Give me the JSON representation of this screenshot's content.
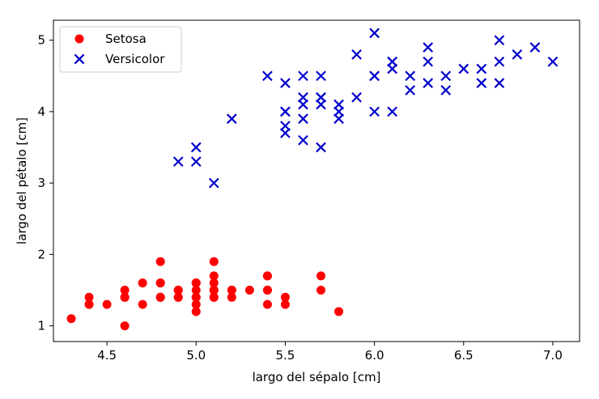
{
  "chart_data": {
    "type": "scatter",
    "xlabel": "largo del sépalo [cm]",
    "ylabel": "largo del pétalo [cm]",
    "xlim": [
      4.2,
      7.15
    ],
    "ylim": [
      0.78,
      5.28
    ],
    "xticks": [
      4.5,
      5.0,
      5.5,
      6.0,
      6.5,
      7.0
    ],
    "xtick_labels": [
      "4.5",
      "5.0",
      "5.5",
      "6.0",
      "6.5",
      "7.0"
    ],
    "yticks": [
      1,
      2,
      3,
      4,
      5
    ],
    "ytick_labels": [
      "1",
      "2",
      "3",
      "4",
      "5"
    ],
    "grid": false,
    "legend_position": "top-left",
    "series": [
      {
        "name": "Setosa",
        "marker": "circle",
        "color": "#ff0000",
        "points": [
          [
            5.1,
            1.4
          ],
          [
            4.9,
            1.4
          ],
          [
            4.7,
            1.3
          ],
          [
            4.6,
            1.5
          ],
          [
            5.0,
            1.4
          ],
          [
            5.4,
            1.7
          ],
          [
            4.6,
            1.4
          ],
          [
            5.0,
            1.5
          ],
          [
            4.4,
            1.4
          ],
          [
            4.9,
            1.5
          ],
          [
            5.4,
            1.5
          ],
          [
            4.8,
            1.6
          ],
          [
            4.8,
            1.4
          ],
          [
            4.3,
            1.1
          ],
          [
            5.8,
            1.2
          ],
          [
            5.7,
            1.5
          ],
          [
            5.4,
            1.3
          ],
          [
            5.1,
            1.4
          ],
          [
            5.7,
            1.7
          ],
          [
            5.1,
            1.5
          ],
          [
            5.4,
            1.7
          ],
          [
            5.1,
            1.5
          ],
          [
            4.6,
            1.0
          ],
          [
            5.1,
            1.7
          ],
          [
            4.8,
            1.9
          ],
          [
            5.0,
            1.6
          ],
          [
            5.0,
            1.6
          ],
          [
            5.2,
            1.5
          ],
          [
            5.2,
            1.4
          ],
          [
            4.7,
            1.6
          ],
          [
            4.8,
            1.6
          ],
          [
            5.4,
            1.5
          ],
          [
            5.2,
            1.5
          ],
          [
            5.5,
            1.4
          ],
          [
            4.9,
            1.5
          ],
          [
            5.0,
            1.2
          ],
          [
            5.5,
            1.3
          ],
          [
            4.9,
            1.4
          ],
          [
            4.4,
            1.3
          ],
          [
            5.1,
            1.5
          ],
          [
            5.0,
            1.3
          ],
          [
            4.5,
            1.3
          ],
          [
            4.4,
            1.3
          ],
          [
            5.0,
            1.6
          ],
          [
            5.1,
            1.9
          ],
          [
            4.8,
            1.4
          ],
          [
            5.1,
            1.6
          ],
          [
            4.6,
            1.4
          ],
          [
            5.3,
            1.5
          ],
          [
            5.0,
            1.4
          ]
        ]
      },
      {
        "name": "Versicolor",
        "marker": "x",
        "color": "#0000cc",
        "points": [
          [
            7.0,
            4.7
          ],
          [
            6.4,
            4.5
          ],
          [
            6.9,
            4.9
          ],
          [
            5.5,
            4.0
          ],
          [
            6.5,
            4.6
          ],
          [
            5.7,
            4.5
          ],
          [
            6.3,
            4.7
          ],
          [
            4.9,
            3.3
          ],
          [
            6.6,
            4.6
          ],
          [
            5.2,
            3.9
          ],
          [
            5.0,
            3.5
          ],
          [
            5.9,
            4.2
          ],
          [
            6.0,
            4.0
          ],
          [
            6.1,
            4.7
          ],
          [
            5.6,
            3.6
          ],
          [
            6.7,
            4.4
          ],
          [
            5.6,
            4.5
          ],
          [
            5.8,
            4.1
          ],
          [
            6.2,
            4.5
          ],
          [
            5.6,
            3.9
          ],
          [
            5.9,
            4.8
          ],
          [
            6.1,
            4.0
          ],
          [
            6.3,
            4.9
          ],
          [
            6.1,
            4.7
          ],
          [
            6.4,
            4.3
          ],
          [
            6.6,
            4.4
          ],
          [
            6.8,
            4.8
          ],
          [
            6.7,
            5.0
          ],
          [
            6.0,
            4.5
          ],
          [
            5.7,
            3.5
          ],
          [
            5.5,
            3.8
          ],
          [
            5.5,
            3.7
          ],
          [
            5.8,
            3.9
          ],
          [
            6.0,
            5.1
          ],
          [
            5.4,
            4.5
          ],
          [
            6.0,
            4.5
          ],
          [
            6.7,
            4.7
          ],
          [
            6.3,
            4.4
          ],
          [
            5.6,
            4.1
          ],
          [
            5.5,
            4.0
          ],
          [
            5.5,
            4.4
          ],
          [
            6.1,
            4.6
          ],
          [
            5.8,
            4.0
          ],
          [
            5.0,
            3.3
          ],
          [
            5.6,
            4.2
          ],
          [
            5.7,
            4.2
          ],
          [
            5.7,
            4.2
          ],
          [
            6.2,
            4.3
          ],
          [
            5.1,
            3.0
          ],
          [
            5.7,
            4.1
          ]
        ]
      }
    ]
  }
}
